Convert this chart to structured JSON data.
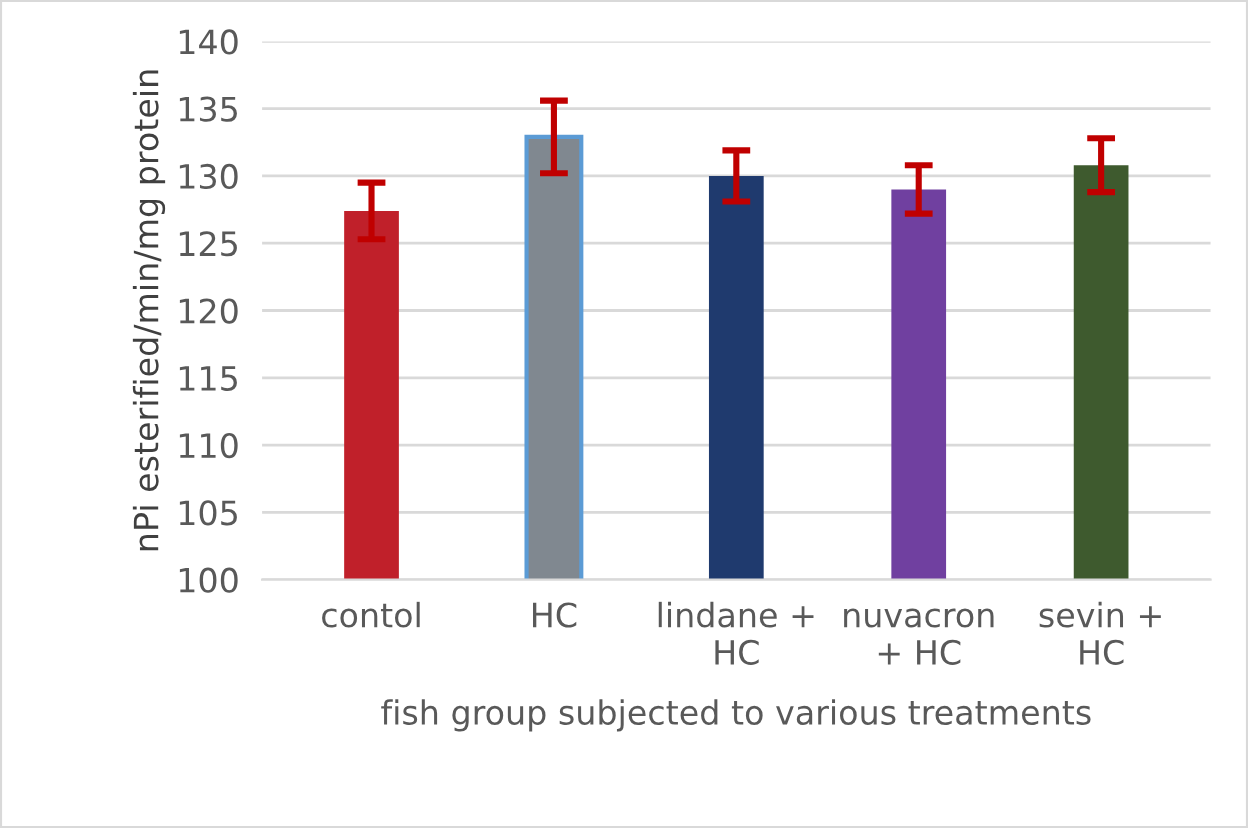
{
  "chart_data": {
    "type": "bar",
    "xlabel": "fish group subjected to various treatments",
    "ylabel": "nPi esterified/min/mg protein",
    "categories": [
      "contol",
      "HC",
      "lindane + HC",
      "nuvacron + HC",
      "sevin + HC"
    ],
    "values": [
      127.4,
      132.9,
      130.0,
      129.0,
      130.8
    ],
    "errors": [
      2.1,
      2.7,
      1.9,
      1.8,
      2.0
    ],
    "colors": [
      "#c0202a",
      "#808890",
      "#1f3a6e",
      "#7040a0",
      "#3e5a2e"
    ],
    "ylim": [
      100,
      140
    ],
    "yticks": [
      100,
      105,
      110,
      115,
      120,
      125,
      130,
      135,
      140
    ],
    "grid": "y"
  }
}
